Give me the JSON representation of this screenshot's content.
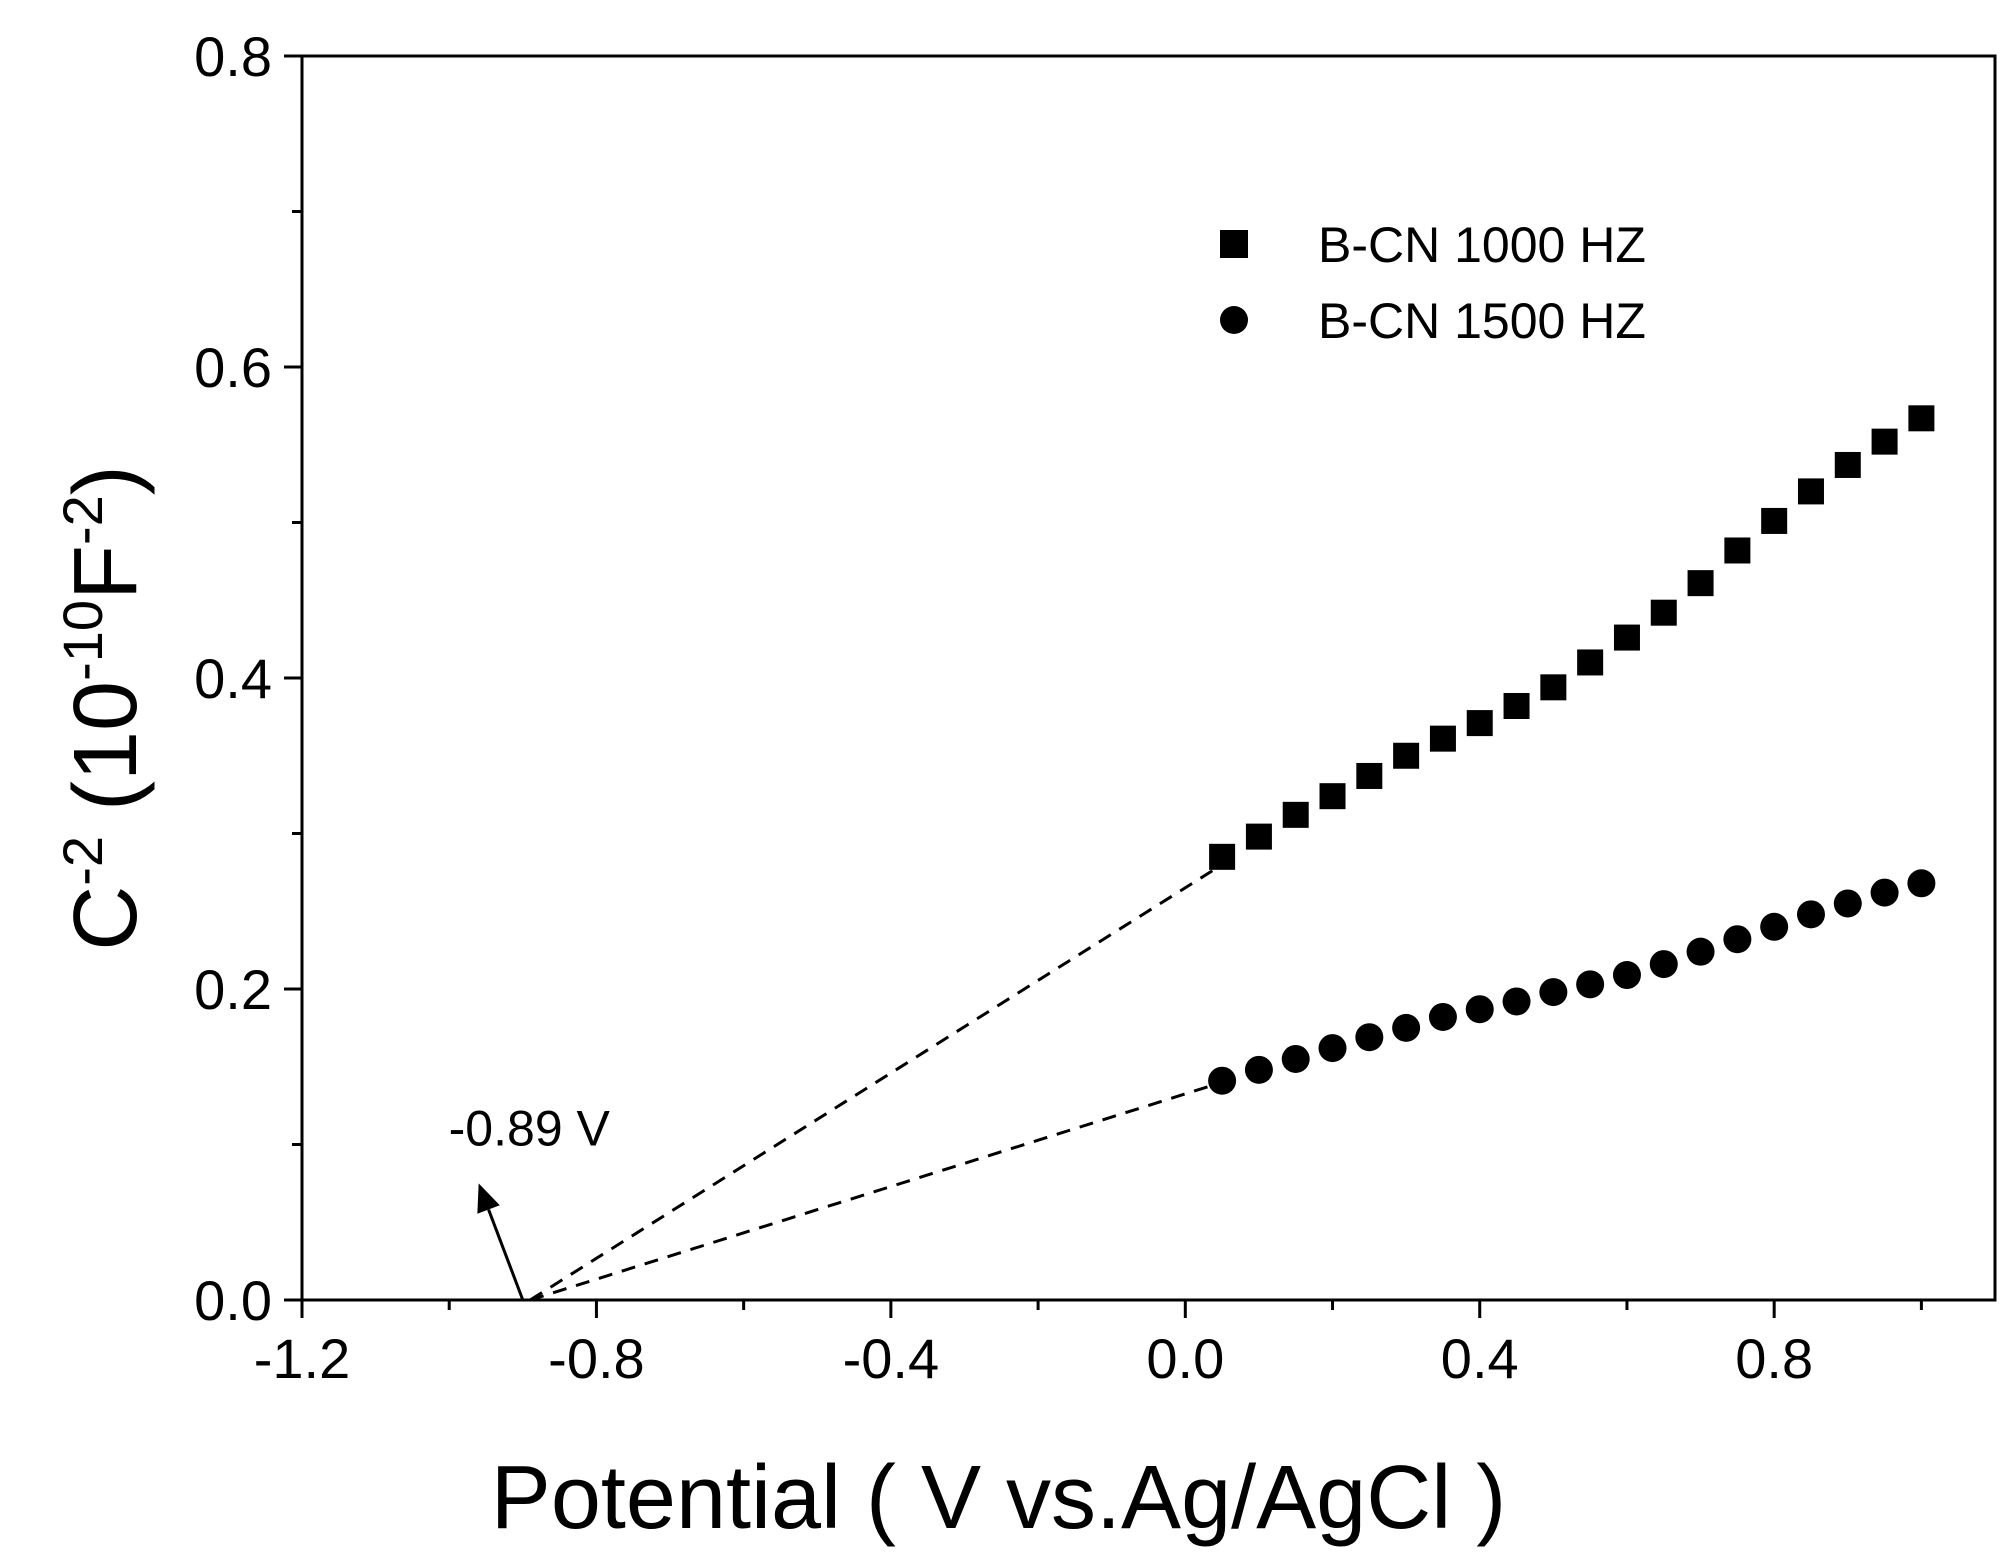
{
  "chart_data": {
    "type": "scatter",
    "title": "",
    "xlabel": "Potential ( V vs.Ag/AgCl )",
    "ylabel": {
      "base": "C",
      "sup1": "-2",
      "mid": " (10",
      "sup2": "-10",
      "mid2": "F",
      "sup3": "-2",
      "end": ")"
    },
    "xlim": [
      -1.2,
      1.1
    ],
    "ylim": [
      0.0,
      0.8
    ],
    "xticks": [
      -1.2,
      -0.8,
      -0.4,
      0.0,
      0.4,
      0.8
    ],
    "xtick_labels": [
      "-1.2",
      "-0.8",
      "-0.4",
      "0.0",
      "0.4",
      "0.8"
    ],
    "xticks_minor": [
      -1.0,
      -0.6,
      -0.2,
      0.2,
      0.6,
      1.0
    ],
    "yticks": [
      0.0,
      0.2,
      0.4,
      0.6,
      0.8
    ],
    "ytick_labels": [
      "0.0",
      "0.2",
      "0.4",
      "0.6",
      "0.8"
    ],
    "yticks_minor": [
      0.1,
      0.3,
      0.5,
      0.7
    ],
    "grid": false,
    "legend_position": "top-right",
    "x": [
      0.05,
      0.1,
      0.15,
      0.2,
      0.25,
      0.3,
      0.35,
      0.4,
      0.45,
      0.5,
      0.55,
      0.6,
      0.65,
      0.7,
      0.75,
      0.8,
      0.85,
      0.9,
      0.95,
      1.0
    ],
    "series": [
      {
        "name": "B-CN 1000 HZ",
        "marker": "square",
        "values": [
          0.285,
          0.298,
          0.312,
          0.324,
          0.337,
          0.35,
          0.361,
          0.371,
          0.382,
          0.394,
          0.41,
          0.426,
          0.442,
          0.461,
          0.482,
          0.501,
          0.52,
          0.537,
          0.552,
          0.567
        ],
        "fit_line": {
          "x": [
            -0.89,
            0.05
          ],
          "y": [
            0.0,
            0.28
          ]
        }
      },
      {
        "name": "B-CN 1500 HZ",
        "marker": "circle",
        "values": [
          0.141,
          0.148,
          0.155,
          0.162,
          0.169,
          0.175,
          0.182,
          0.187,
          0.192,
          0.198,
          0.203,
          0.209,
          0.216,
          0.224,
          0.232,
          0.24,
          0.248,
          0.255,
          0.262,
          0.268
        ],
        "fit_line": {
          "x": [
            -0.89,
            0.05
          ],
          "y": [
            0.0,
            0.14
          ]
        }
      }
    ],
    "annotations": [
      {
        "text": "-0.89 V",
        "arrow_from": [
          -0.9,
          0.0
        ],
        "arrow_to": [
          -0.96,
          0.075
        ]
      }
    ]
  }
}
